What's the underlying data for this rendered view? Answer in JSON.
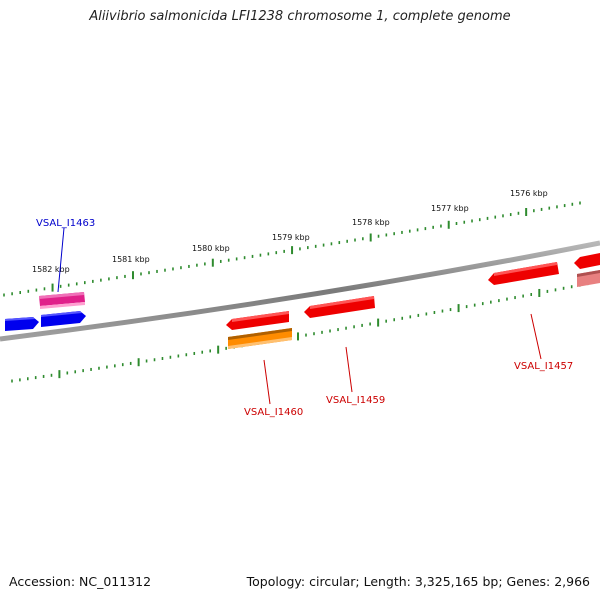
{
  "title": "Aliivibrio salmonicida LFI1238 chromosome 1, complete genome",
  "footer": {
    "accession": "Accession: NC_011312",
    "summary": "Topology: circular; Length: 3,325,165 bp; Genes: 2,966"
  },
  "ruler_labels": [
    "1582 kbp",
    "1581 kbp",
    "1580 kbp",
    "1579 kbp",
    "1578 kbp",
    "1577 kbp",
    "1576 kbp"
  ],
  "gene_labels": [
    {
      "name": "VSAL_I1463",
      "color": "#0000cc"
    },
    {
      "name": "VSAL_I1460",
      "color": "#cc0000"
    },
    {
      "name": "VSAL_I1459",
      "color": "#cc0000"
    },
    {
      "name": "VSAL_I1457",
      "color": "#cc0000"
    }
  ],
  "colors": {
    "backbone": "#8a8a8a",
    "ruler": "#2e8b2e",
    "gene_red": "#ee0000",
    "gene_blue": "#0000ee",
    "gene_magenta": "#e0208a",
    "gene_orange": "#ff8c00",
    "gene_pink": "#e88080"
  }
}
